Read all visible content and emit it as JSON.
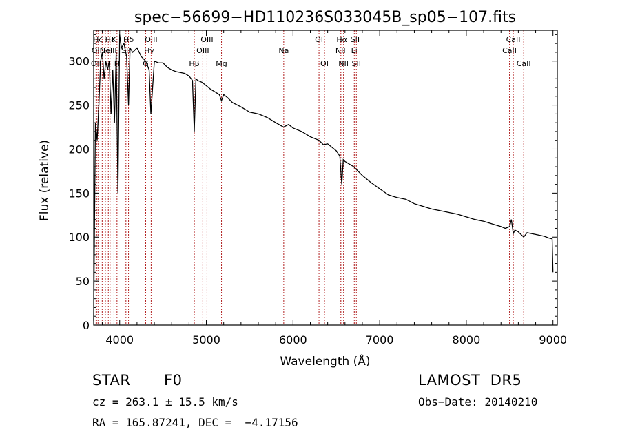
{
  "chart_data": {
    "type": "line",
    "title": "spec−56699−HD110236S033045B_sp05−107.fits",
    "xlabel": "Wavelength (Å)",
    "ylabel": "Flux (relative)",
    "xlim": [
      3700,
      9050
    ],
    "ylim": [
      0,
      335
    ],
    "xticks": [
      4000,
      5000,
      6000,
      7000,
      8000,
      9000
    ],
    "yticks": [
      0,
      50,
      100,
      150,
      200,
      250,
      300
    ],
    "grid": false,
    "colors": {
      "spectrum": "#000000",
      "lines": "#b22222",
      "axes": "#000000"
    },
    "series": [
      {
        "x": [
          3700,
          3720,
          3740,
          3760,
          3780,
          3800,
          3820,
          3840,
          3860,
          3880,
          3900,
          3920,
          3940,
          3960,
          3980,
          4000,
          4020,
          4050,
          4080,
          4102,
          4120,
          4150,
          4200,
          4250,
          4300,
          4340,
          4360,
          4400,
          4450,
          4500,
          4550,
          4600,
          4650,
          4700,
          4750,
          4800,
          4840,
          4861,
          4880,
          4900,
          4950,
          5000,
          5050,
          5100,
          5150,
          5175,
          5200,
          5250,
          5300,
          5400,
          5500,
          5600,
          5700,
          5800,
          5890,
          5950,
          6000,
          6100,
          6200,
          6300,
          6350,
          6400,
          6500,
          6540,
          6563,
          6580,
          6600,
          6650,
          6700,
          6800,
          6900,
          7000,
          7100,
          7200,
          7300,
          7400,
          7500,
          7600,
          7700,
          7800,
          7900,
          8000,
          8100,
          8200,
          8300,
          8400,
          8450,
          8500,
          8520,
          8542,
          8560,
          8600,
          8662,
          8700,
          8800,
          8900,
          8950,
          8990,
          9000
        ],
        "values": [
          5,
          230,
          210,
          250,
          300,
          310,
          280,
          300,
          290,
          300,
          240,
          290,
          230,
          310,
          150,
          330,
          315,
          320,
          305,
          250,
          315,
          310,
          315,
          305,
          300,
          290,
          240,
          300,
          298,
          298,
          293,
          290,
          288,
          287,
          286,
          283,
          278,
          220,
          280,
          278,
          276,
          272,
          268,
          265,
          262,
          255,
          262,
          258,
          253,
          248,
          242,
          240,
          236,
          230,
          225,
          228,
          224,
          220,
          214,
          210,
          205,
          206,
          198,
          192,
          160,
          188,
          186,
          183,
          180,
          170,
          162,
          155,
          148,
          145,
          143,
          138,
          135,
          132,
          130,
          128,
          126,
          123,
          120,
          118,
          115,
          112,
          110,
          112,
          120,
          104,
          108,
          106,
          100,
          105,
          103,
          101,
          99,
          98,
          60
        ]
      }
    ],
    "lines": [
      {
        "wl": 3727,
        "label": "OII",
        "row": 3
      },
      {
        "wl": 3734,
        "label": "OII",
        "row": 2
      },
      {
        "wl": 3750,
        "label": "Hζ",
        "row": 1
      },
      {
        "wl": 3798,
        "label": "",
        "row": 0
      },
      {
        "wl": 3835,
        "label": "",
        "row": 0
      },
      {
        "wl": 3869,
        "label": "NeIII",
        "row": 2
      },
      {
        "wl": 3889,
        "label": "Hε",
        "row": 1
      },
      {
        "wl": 3934,
        "label": "K",
        "row": 1
      },
      {
        "wl": 3969,
        "label": "H",
        "row": 3
      },
      {
        "wl": 4072,
        "label": "SII",
        "row": 2
      },
      {
        "wl": 4102,
        "label": "Hδ",
        "row": 1
      },
      {
        "wl": 4300,
        "label": "G",
        "row": 3
      },
      {
        "wl": 4340,
        "label": "Hγ",
        "row": 2
      },
      {
        "wl": 4363,
        "label": "OIII",
        "row": 1
      },
      {
        "wl": 4861,
        "label": "Hβ",
        "row": 3
      },
      {
        "wl": 4959,
        "label": "OIII",
        "row": 2
      },
      {
        "wl": 5007,
        "label": "OIII",
        "row": 1
      },
      {
        "wl": 5175,
        "label": "Mg",
        "row": 3
      },
      {
        "wl": 5893,
        "label": "Na",
        "row": 2
      },
      {
        "wl": 6300,
        "label": "OI",
        "row": 1
      },
      {
        "wl": 6363,
        "label": "OI",
        "row": 3
      },
      {
        "wl": 6548,
        "label": "NII",
        "row": 2
      },
      {
        "wl": 6563,
        "label": "Hα",
        "row": 1
      },
      {
        "wl": 6583,
        "label": "NII",
        "row": 3
      },
      {
        "wl": 6707,
        "label": "Li",
        "row": 2
      },
      {
        "wl": 6716,
        "label": "SII",
        "row": 1
      },
      {
        "wl": 6731,
        "label": "SII",
        "row": 3
      },
      {
        "wl": 8498,
        "label": "CaII",
        "row": 2
      },
      {
        "wl": 8542,
        "label": "CaII",
        "row": 1
      },
      {
        "wl": 8662,
        "label": "CaII",
        "row": 3
      }
    ]
  },
  "info": {
    "class_label": "STAR",
    "subclass": "F0",
    "survey": "LAMOST  DR5",
    "cz": "cz = 263.1 ± 15.5 km/s",
    "obs_date": "Obs−Date: 20140210",
    "coords": "RA = 165.87241, DEC =  −4.17156"
  }
}
